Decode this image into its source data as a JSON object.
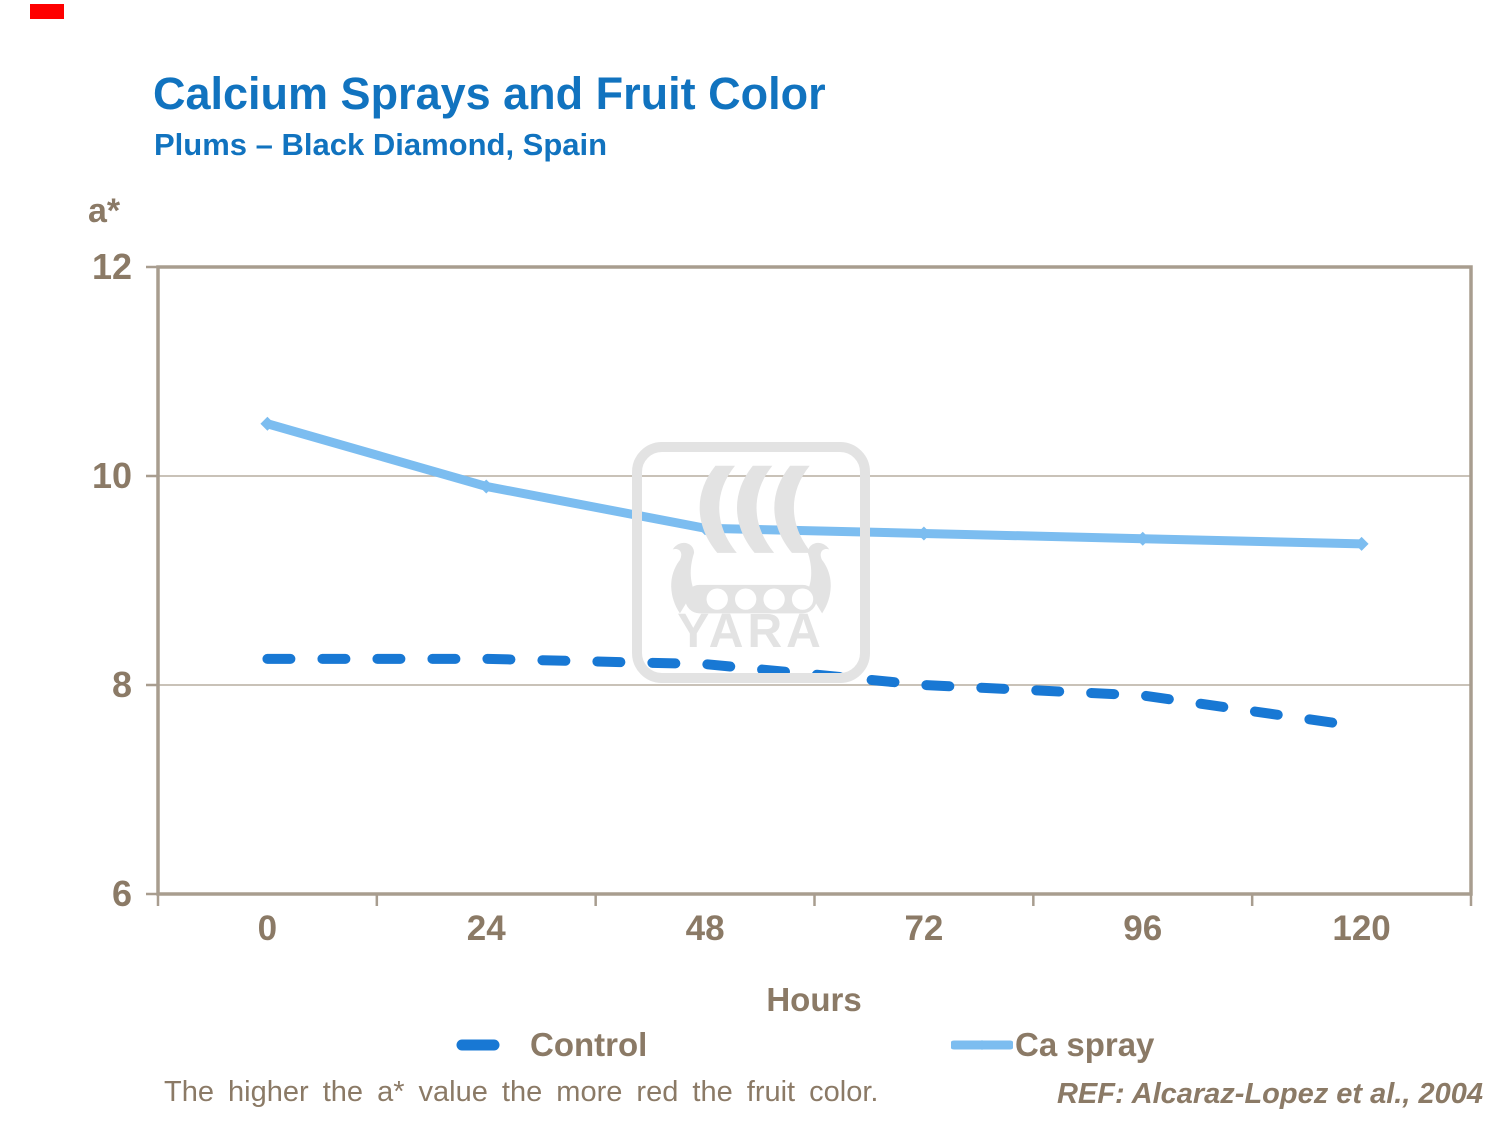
{
  "accent_color": "#FE0000",
  "colors": {
    "title_blue": "#1173BF",
    "text_brown": "#8B7A66",
    "axis": "#A89D8F",
    "gridline": "#B7AEA1",
    "watermark": "#E3E3E3",
    "background": "#FFFFFF"
  },
  "watermark": {
    "text": "YARA",
    "icon": "yara-viking-ship-logo"
  },
  "footer": {
    "note": "The higher the a* value the more red the fruit color.",
    "ref": "REF: Alcaraz-Lopez et al., 2004"
  },
  "chart_data": {
    "type": "line",
    "title": "Calcium Sprays and Fruit Color",
    "subtitle": "Plums – Black Diamond, Spain",
    "xlabel": "Hours",
    "ylabel": "a*",
    "x": [
      0,
      24,
      48,
      72,
      96,
      120
    ],
    "x_tick_labels": [
      "0",
      "24",
      "48",
      "72",
      "96",
      "120"
    ],
    "ylim": [
      6,
      12
    ],
    "yticks": [
      6,
      8,
      10,
      12
    ],
    "grid": "horizontal",
    "legend_position": "bottom",
    "series": [
      {
        "name": "Control",
        "style": "dashed",
        "color": "#1878D4",
        "values": [
          8.25,
          8.25,
          8.2,
          8.0,
          7.9,
          7.6
        ]
      },
      {
        "name": "Ca spray",
        "style": "solid",
        "color": "#7CBDF0",
        "values": [
          10.5,
          9.9,
          9.5,
          9.45,
          9.4,
          9.35
        ]
      }
    ]
  }
}
